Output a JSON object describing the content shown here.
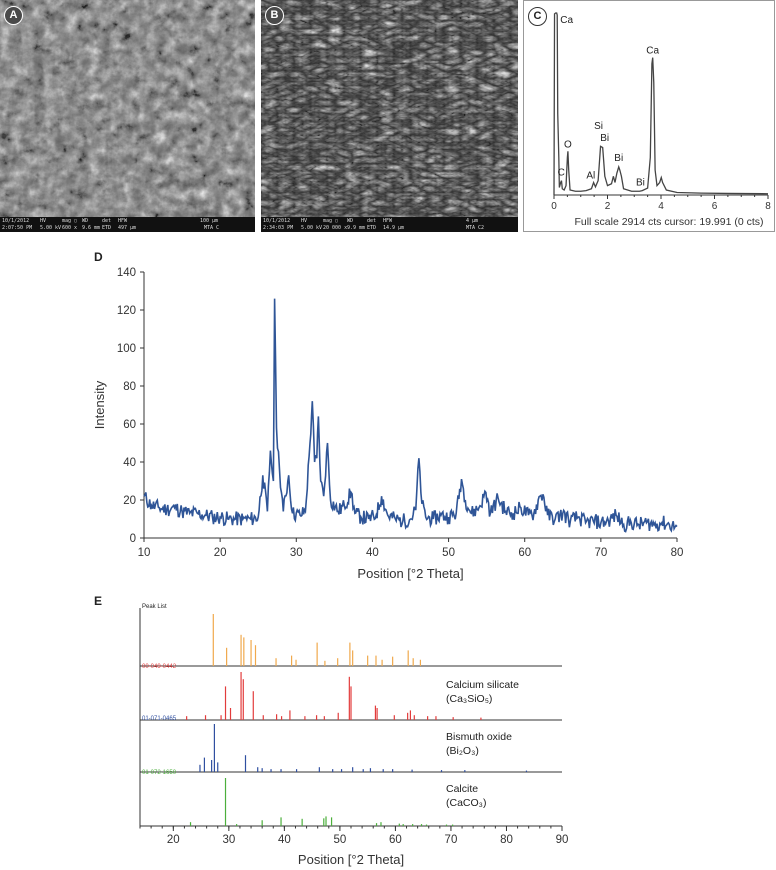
{
  "panels": {
    "a": {
      "letter": "A",
      "footer": {
        "date": "10/1/2012",
        "time": "2:07:50 PM",
        "hv_label": "HV",
        "hv": "5.00 kV",
        "mag_label": "mag ▢",
        "mag": "600 x",
        "wd_label": "WD",
        "wd": "9.6 mm",
        "det_label": "det",
        "det": "ETD",
        "hfw_label": "HFW",
        "hfw": "497 μm",
        "scale": "100 μm",
        "sample": "MTA C"
      }
    },
    "b": {
      "letter": "B",
      "footer": {
        "date": "10/1/2012",
        "time": "2:34:03 PM",
        "hv_label": "HV",
        "hv": "5.00 kV",
        "mag_label": "mag ▢",
        "mag": "20 000 x",
        "wd_label": "WD",
        "wd": "9.9 mm",
        "det_label": "det",
        "det": "ETD",
        "hfw_label": "HFW",
        "hfw": "14.9 μm",
        "scale": "4 μm",
        "sample": "MTA C2"
      }
    },
    "c": {
      "letter": "C"
    },
    "d": {
      "letter": "D"
    },
    "e": {
      "letter": "E"
    }
  },
  "chart_data": [
    {
      "panel": "C",
      "type": "line",
      "xlim": [
        0,
        8
      ],
      "xticks": [
        "0",
        "2",
        "4",
        "6",
        "8"
      ],
      "caption": "Full scale 2914 cts cursor: 19.991 (0 cts)",
      "peaks": [
        {
          "x": 0.1,
          "y": 2914,
          "label": "Ca"
        },
        {
          "x": 0.27,
          "y": 250,
          "label": "C"
        },
        {
          "x": 0.52,
          "y": 700,
          "label": "O"
        },
        {
          "x": 1.49,
          "y": 200,
          "label": "Al"
        },
        {
          "x": 1.74,
          "y": 800,
          "label": "Si"
        },
        {
          "x": 1.82,
          "y": 800,
          "label": "Bi"
        },
        {
          "x": 2.42,
          "y": 450,
          "label": "Bi"
        },
        {
          "x": 3.23,
          "y": 60,
          "label": "Bi"
        },
        {
          "x": 3.69,
          "y": 2200,
          "label": "Ca"
        },
        {
          "x": 4.01,
          "y": 280,
          "label": ""
        }
      ],
      "series": [
        {
          "values": [
            [
              0,
              0
            ],
            [
              0.02,
              2900
            ],
            [
              0.06,
              2914
            ],
            [
              0.1,
              2914
            ],
            [
              0.12,
              2880
            ],
            [
              0.14,
              1300
            ],
            [
              0.18,
              600
            ],
            [
              0.2,
              120
            ],
            [
              0.25,
              200
            ],
            [
              0.28,
              230
            ],
            [
              0.31,
              100
            ],
            [
              0.38,
              80
            ],
            [
              0.45,
              150
            ],
            [
              0.5,
              600
            ],
            [
              0.52,
              700
            ],
            [
              0.55,
              400
            ],
            [
              0.6,
              80
            ],
            [
              0.8,
              60
            ],
            [
              1.0,
              60
            ],
            [
              1.2,
              70
            ],
            [
              1.4,
              100
            ],
            [
              1.48,
              200
            ],
            [
              1.55,
              130
            ],
            [
              1.65,
              230
            ],
            [
              1.74,
              780
            ],
            [
              1.82,
              760
            ],
            [
              1.9,
              300
            ],
            [
              2.0,
              150
            ],
            [
              2.15,
              180
            ],
            [
              2.22,
              300
            ],
            [
              2.28,
              200
            ],
            [
              2.35,
              350
            ],
            [
              2.42,
              450
            ],
            [
              2.46,
              400
            ],
            [
              2.52,
              300
            ],
            [
              2.6,
              100
            ],
            [
              2.9,
              60
            ],
            [
              3.2,
              60
            ],
            [
              3.3,
              70
            ],
            [
              3.5,
              110
            ],
            [
              3.6,
              600
            ],
            [
              3.66,
              2100
            ],
            [
              3.69,
              2200
            ],
            [
              3.73,
              1800
            ],
            [
              3.78,
              400
            ],
            [
              3.85,
              150
            ],
            [
              3.95,
              200
            ],
            [
              4.01,
              280
            ],
            [
              4.06,
              200
            ],
            [
              4.2,
              80
            ],
            [
              4.6,
              40
            ],
            [
              5.5,
              30
            ],
            [
              6.5,
              25
            ],
            [
              8,
              20
            ]
          ]
        }
      ]
    },
    {
      "panel": "D",
      "type": "line",
      "xlabel": "Position [°2 Theta]",
      "ylabel": "Intensity",
      "xlim": [
        10,
        80
      ],
      "ylim": [
        0,
        140
      ],
      "xticks": [
        "10",
        "20",
        "30",
        "40",
        "50",
        "60",
        "70",
        "80"
      ],
      "yticks": [
        "0",
        "20",
        "40",
        "60",
        "80",
        "100",
        "120",
        "140"
      ],
      "series": [
        {
          "color": "#2f5597",
          "values": [
            [
              10,
              22
            ],
            [
              11,
              17
            ],
            [
              12,
              16
            ],
            [
              13,
              15
            ],
            [
              14,
              16
            ],
            [
              15,
              14
            ],
            [
              16,
              13
            ],
            [
              17,
              13
            ],
            [
              18,
              12
            ],
            [
              19,
              11
            ],
            [
              20,
              11
            ],
            [
              21,
              10
            ],
            [
              22,
              10
            ],
            [
              23,
              10
            ],
            [
              24,
              10
            ],
            [
              25,
              11
            ],
            [
              25.6,
              33
            ],
            [
              26.2,
              14
            ],
            [
              26.6,
              46
            ],
            [
              27.0,
              30
            ],
            [
              27.15,
              126
            ],
            [
              27.4,
              58
            ],
            [
              27.8,
              36
            ],
            [
              28.3,
              14
            ],
            [
              29.0,
              33
            ],
            [
              29.5,
              13
            ],
            [
              30.5,
              12
            ],
            [
              31.2,
              14
            ],
            [
              31.8,
              50
            ],
            [
              32.1,
              72
            ],
            [
              32.4,
              40
            ],
            [
              32.7,
              42
            ],
            [
              32.9,
              64
            ],
            [
              33.2,
              30
            ],
            [
              33.6,
              22
            ],
            [
              34.1,
              50
            ],
            [
              34.5,
              20
            ],
            [
              35.5,
              14
            ],
            [
              36.3,
              17
            ],
            [
              37.2,
              24
            ],
            [
              37.7,
              13
            ],
            [
              38.5,
              11
            ],
            [
              39.5,
              10
            ],
            [
              40.5,
              12
            ],
            [
              41.2,
              22
            ],
            [
              42.0,
              12
            ],
            [
              43.0,
              10
            ],
            [
              44.0,
              9
            ],
            [
              45.0,
              10
            ],
            [
              45.7,
              15
            ],
            [
              46.1,
              42
            ],
            [
              46.5,
              18
            ],
            [
              47.0,
              11
            ],
            [
              48.0,
              10
            ],
            [
              49.0,
              12
            ],
            [
              50.0,
              11
            ],
            [
              51.0,
              13
            ],
            [
              51.7,
              31
            ],
            [
              52.2,
              20
            ],
            [
              53.0,
              13
            ],
            [
              54.0,
              16
            ],
            [
              54.9,
              24
            ],
            [
              55.5,
              13
            ],
            [
              56.5,
              21
            ],
            [
              57.5,
              14
            ],
            [
              58.5,
              13
            ],
            [
              59.5,
              16
            ],
            [
              60.5,
              12
            ],
            [
              61.2,
              13
            ],
            [
              62.0,
              22
            ],
            [
              62.4,
              23
            ],
            [
              63.0,
              12
            ],
            [
              64.0,
              10
            ],
            [
              65.0,
              13
            ],
            [
              66.0,
              9
            ],
            [
              67.0,
              11
            ],
            [
              68.0,
              8
            ],
            [
              69.0,
              9
            ],
            [
              70.0,
              8
            ],
            [
              71.0,
              9
            ],
            [
              72.0,
              12
            ],
            [
              73.0,
              7
            ],
            [
              74.0,
              8
            ],
            [
              75.0,
              7
            ],
            [
              76.0,
              8
            ],
            [
              77.0,
              7
            ],
            [
              78.0,
              8
            ],
            [
              79.0,
              7
            ],
            [
              80.0,
              6
            ]
          ]
        }
      ]
    },
    {
      "panel": "E",
      "type": "bar",
      "xlabel": "Position [°2 Theta]",
      "xlim": [
        14,
        90
      ],
      "xticks": [
        "20",
        "30",
        "40",
        "50",
        "60",
        "70",
        "80",
        "90"
      ],
      "series": [
        {
          "name": "Peak List",
          "color": "#f0a94c",
          "sticks": [
            [
              27.2,
              1.0
            ],
            [
              29.6,
              0.35
            ],
            [
              32.2,
              0.6
            ],
            [
              32.7,
              0.55
            ],
            [
              34.0,
              0.5
            ],
            [
              34.8,
              0.4
            ],
            [
              38.5,
              0.15
            ],
            [
              41.3,
              0.2
            ],
            [
              42.1,
              0.12
            ],
            [
              45.9,
              0.45
            ],
            [
              47.3,
              0.1
            ],
            [
              49.6,
              0.15
            ],
            [
              51.8,
              0.45
            ],
            [
              52.3,
              0.3
            ],
            [
              55.0,
              0.2
            ],
            [
              56.5,
              0.2
            ],
            [
              57.6,
              0.12
            ],
            [
              59.5,
              0.18
            ],
            [
              62.3,
              0.3
            ],
            [
              63.2,
              0.15
            ],
            [
              64.5,
              0.12
            ]
          ]
        },
        {
          "name": "00-049-0442",
          "color": "#e23c3c",
          "sticks": [
            [
              22.4,
              0.08
            ],
            [
              25.8,
              0.1
            ],
            [
              28.6,
              0.1
            ],
            [
              29.4,
              0.7
            ],
            [
              30.3,
              0.25
            ],
            [
              32.2,
              1.0
            ],
            [
              32.6,
              0.85
            ],
            [
              34.4,
              0.6
            ],
            [
              36.2,
              0.1
            ],
            [
              38.6,
              0.12
            ],
            [
              39.5,
              0.08
            ],
            [
              41.0,
              0.2
            ],
            [
              43.7,
              0.08
            ],
            [
              45.8,
              0.1
            ],
            [
              47.2,
              0.08
            ],
            [
              49.7,
              0.15
            ],
            [
              51.7,
              0.9
            ],
            [
              52.0,
              0.7
            ],
            [
              56.4,
              0.3
            ],
            [
              56.7,
              0.25
            ],
            [
              59.8,
              0.1
            ],
            [
              62.2,
              0.15
            ],
            [
              62.7,
              0.2
            ],
            [
              63.4,
              0.1
            ],
            [
              65.8,
              0.08
            ],
            [
              67.3,
              0.08
            ],
            [
              70.4,
              0.06
            ],
            [
              75.4,
              0.05
            ]
          ]
        },
        {
          "name": "01-071-0465",
          "color": "#2f4fa0",
          "sticks": [
            [
              24.8,
              0.15
            ],
            [
              25.6,
              0.3
            ],
            [
              26.9,
              0.25
            ],
            [
              27.4,
              1.0
            ],
            [
              28.0,
              0.2
            ],
            [
              33.0,
              0.35
            ],
            [
              35.2,
              0.1
            ],
            [
              36.0,
              0.08
            ],
            [
              37.6,
              0.06
            ],
            [
              39.4,
              0.06
            ],
            [
              42.2,
              0.06
            ],
            [
              46.3,
              0.1
            ],
            [
              48.7,
              0.06
            ],
            [
              50.3,
              0.06
            ],
            [
              52.3,
              0.1
            ],
            [
              54.2,
              0.06
            ],
            [
              55.5,
              0.08
            ],
            [
              57.8,
              0.06
            ],
            [
              59.5,
              0.06
            ],
            [
              63.0,
              0.05
            ],
            [
              68.3,
              0.04
            ],
            [
              72.5,
              0.04
            ],
            [
              83.6,
              0.03
            ]
          ]
        },
        {
          "name": "01-072-1650",
          "color": "#4caf3c",
          "sticks": [
            [
              23.1,
              0.08
            ],
            [
              29.4,
              1.0
            ],
            [
              31.4,
              0.04
            ],
            [
              36.0,
              0.12
            ],
            [
              39.4,
              0.18
            ],
            [
              43.2,
              0.15
            ],
            [
              47.1,
              0.16
            ],
            [
              47.5,
              0.2
            ],
            [
              48.5,
              0.18
            ],
            [
              56.6,
              0.06
            ],
            [
              57.4,
              0.08
            ],
            [
              60.7,
              0.05
            ],
            [
              61.4,
              0.04
            ],
            [
              63.1,
              0.04
            ],
            [
              64.7,
              0.04
            ],
            [
              65.6,
              0.03
            ],
            [
              69.2,
              0.03
            ],
            [
              70.3,
              0.03
            ]
          ]
        }
      ],
      "annotations": [
        {
          "line1": "Calcium silicate",
          "line2": "(Ca₃SiO₅)"
        },
        {
          "line1": "Bismuth oxide",
          "line2": "(Bi₂O₃)"
        },
        {
          "line1": "Calcite",
          "line2": "(CaCO₃)"
        }
      ]
    }
  ]
}
